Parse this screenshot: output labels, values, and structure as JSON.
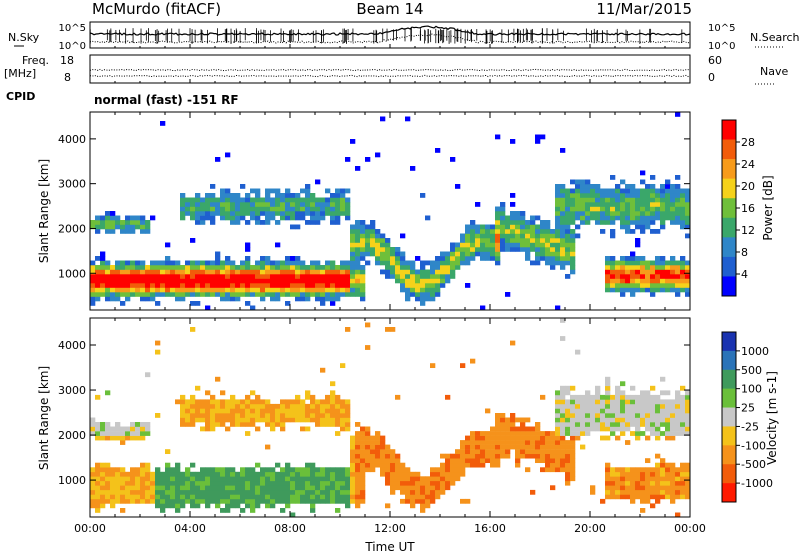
{
  "header": {
    "station": "McMurdo (fitACF)",
    "beam": "Beam 14",
    "date": "11/Mar/2015"
  },
  "aux": {
    "nsky_label": "N.Sky",
    "nsearch_label": "N.Search",
    "freq_label_1": "Freq.",
    "freq_label_2": "[MHz]",
    "nave_label": "Nave",
    "cpid_label": "CPID",
    "cpid_value": "normal (fast) -151 RF",
    "noise_ticks_left": [
      "10^5",
      "10^0"
    ],
    "noise_ticks_right": [
      "10^5",
      "10^0"
    ],
    "freq_ticks": [
      "18",
      "8"
    ],
    "nave_ticks": [
      "60",
      "0"
    ]
  },
  "chart_data": [
    {
      "type": "heatmap",
      "name": "Power",
      "ylabel": "Slant Range [km]",
      "ylim": [
        180,
        4600
      ],
      "yticks": [
        1000,
        2000,
        3000,
        4000
      ],
      "xlim": [
        0,
        24
      ],
      "colorbar": {
        "label": "Power [dB]",
        "ticks": [
          "4",
          "8",
          "12",
          "16",
          "20",
          "24",
          "28"
        ],
        "colors": [
          "#0000ff",
          "#1f5fd0",
          "#2f86c8",
          "#3aa76a",
          "#6fbf3a",
          "#f5d21b",
          "#f79b1b",
          "#f25c0a",
          "#ff0000"
        ]
      }
    },
    {
      "type": "heatmap",
      "name": "Velocity",
      "ylabel": "Slant Range [km]",
      "ylim": [
        180,
        4600
      ],
      "yticks": [
        1000,
        2000,
        3000,
        4000
      ],
      "xlim": [
        0,
        24
      ],
      "xlabel": "Time UT",
      "xticks": [
        "00:00",
        "04:00",
        "08:00",
        "12:00",
        "16:00",
        "20:00",
        "00:00"
      ],
      "colorbar": {
        "label": "Velocity [m s-1]",
        "ticks": [
          "1000",
          "500",
          "100",
          "25",
          "-25",
          "-100",
          "-500",
          "-1000"
        ],
        "colors": [
          "#1a33b0",
          "#2a73b8",
          "#3f9a5c",
          "#6abf3a",
          "#c8c8c8",
          "#f4c21a",
          "#f5921b",
          "#f25c0a",
          "#ff1a00"
        ]
      }
    }
  ]
}
